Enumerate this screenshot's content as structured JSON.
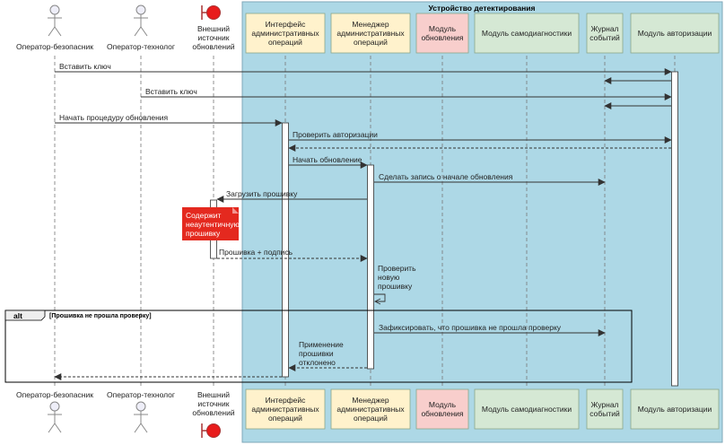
{
  "box_title": "Устройство детектирования",
  "participants": [
    {
      "id": "op_sec",
      "kind": "actor",
      "lines": [
        "Оператор-безопасник"
      ]
    },
    {
      "id": "op_tech",
      "kind": "actor",
      "lines": [
        "Оператор-технолог"
      ]
    },
    {
      "id": "ext",
      "kind": "boundary",
      "lines": [
        "Внешний",
        "источник",
        "обновлений"
      ]
    },
    {
      "id": "iface",
      "kind": "box",
      "color": "#fff2cc",
      "lines": [
        "Интерфейс",
        "административных",
        "операций"
      ]
    },
    {
      "id": "mgr",
      "kind": "box",
      "color": "#fff2cc",
      "lines": [
        "Менеджер",
        "административных",
        "операций"
      ]
    },
    {
      "id": "upd",
      "kind": "box",
      "color": "#f8cecc",
      "lines": [
        "Модуль",
        "обновления"
      ]
    },
    {
      "id": "diag",
      "kind": "box",
      "color": "#d5e8d4",
      "lines": [
        "Модуль самодиагностики"
      ]
    },
    {
      "id": "log",
      "kind": "box",
      "color": "#d5e8d4",
      "lines": [
        "Журнал",
        "событий"
      ]
    },
    {
      "id": "auth",
      "kind": "box",
      "color": "#d5e8d4",
      "lines": [
        "Модуль авторизации"
      ]
    }
  ],
  "messages": [
    {
      "lines": [
        "Вставить ключ"
      ]
    },
    {
      "lines": [
        ""
      ]
    },
    {
      "lines": [
        "Вставить ключ"
      ]
    },
    {
      "lines": [
        ""
      ]
    },
    {
      "lines": [
        "Начать процедуру обновления"
      ]
    },
    {
      "lines": [
        "Проверить авторизации"
      ]
    },
    {
      "lines": [
        ""
      ]
    },
    {
      "lines": [
        "Начать обновление"
      ]
    },
    {
      "lines": [
        "Сделать запись о начале обновления"
      ]
    },
    {
      "lines": [
        "Загрузить прошивку"
      ]
    },
    {
      "lines": [
        "Прошивка + подпись"
      ]
    },
    {
      "lines": [
        "Проверить",
        "новую",
        "прошивку"
      ]
    },
    {
      "lines": [
        "Зафиксировать, что прошивка не прошла проверку"
      ]
    },
    {
      "lines": [
        "Применение",
        "прошивки",
        "отклонено"
      ]
    },
    {
      "lines": [
        ""
      ]
    }
  ],
  "note": {
    "lines": [
      "Содержит",
      "неаутентичную",
      "прошивку"
    ],
    "color": "#e4291f"
  },
  "alt": {
    "keyword": "alt",
    "guard": "[Прошивка не прошла проверку]"
  },
  "colors": {
    "box_bg": "#add8e6",
    "box_border": "#7fa7b8"
  }
}
